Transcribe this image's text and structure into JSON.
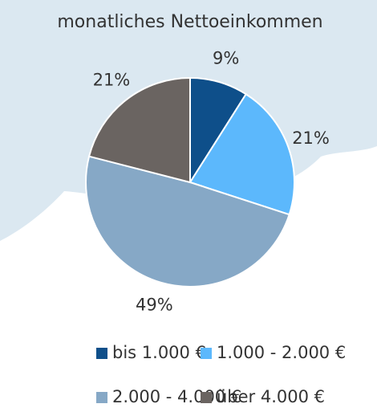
{
  "chart_data": {
    "type": "pie",
    "title": "monatliches Nettoeinkommen",
    "categories": [
      "bis 1.000 €",
      "1.000 - 2.000 €",
      "2.000 - 4.000 €",
      "über 4.000 €"
    ],
    "values": [
      9,
      21,
      49,
      21
    ],
    "value_labels": [
      "9%",
      "21%",
      "49%",
      "21%"
    ],
    "colors": [
      "#0e4f8a",
      "#5cb8fc",
      "#86a8c6",
      "#6a6461"
    ]
  }
}
